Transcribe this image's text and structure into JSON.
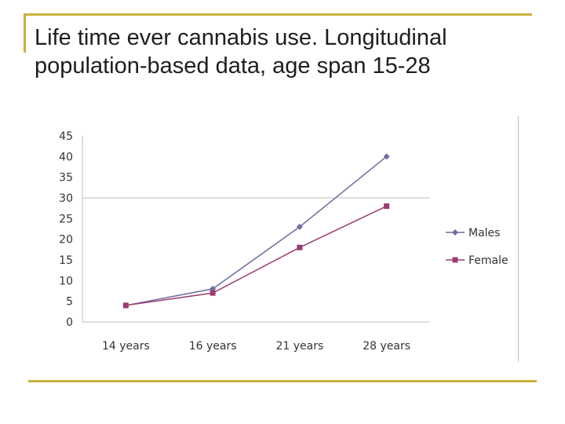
{
  "slide": {
    "title_line1": "Life time ever cannabis use. Longitudinal",
    "title_line2": "population-based data, age span 15-28"
  },
  "chart_data": {
    "type": "line",
    "categories": [
      "14 years",
      "16 years",
      "21 years",
      "28 years"
    ],
    "series": [
      {
        "name": "Males",
        "values": [
          4,
          8,
          23,
          40
        ],
        "color": "#6e6e9e",
        "marker": "diamond"
      },
      {
        "name": "Female",
        "values": [
          4,
          7,
          18,
          28
        ],
        "color": "#9c3d6f",
        "marker": "square"
      }
    ],
    "ylim": [
      0,
      45
    ],
    "yticks": [
      0,
      5,
      10,
      15,
      20,
      25,
      30,
      35,
      40,
      45
    ],
    "gridlines": [
      30
    ],
    "legend": "right"
  }
}
